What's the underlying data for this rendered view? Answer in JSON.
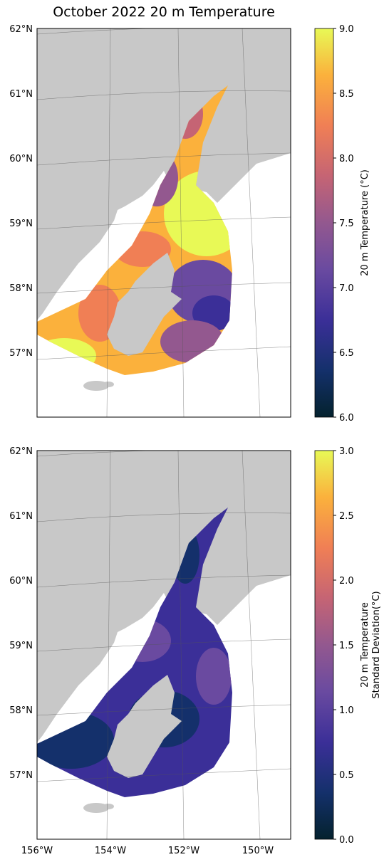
{
  "title": "October 2022 20 m Temperature",
  "lat_labels": [
    "62°N",
    "61°N",
    "60°N",
    "59°N",
    "58°N",
    "57°N"
  ],
  "lon_labels": [
    "156°W",
    "154°W",
    "152°W",
    "150°W"
  ],
  "colors": {
    "land": "#c8c8c8",
    "ocean": "#ffffff",
    "grid": "#555555"
  },
  "panels": [
    {
      "name": "mean-temperature",
      "colorbar": {
        "label": "20 m Temperature (°C)",
        "ticks": [
          "9.0",
          "8.5",
          "8.0",
          "7.5",
          "7.0",
          "6.5",
          "6.0"
        ],
        "min": 6.0,
        "max": 9.0,
        "colormap": "thermal"
      }
    },
    {
      "name": "temperature-std",
      "colorbar": {
        "label_line1": "20 m Temperature",
        "label_line2": "Standard Deviation(°C)",
        "ticks": [
          "3.0",
          "2.5",
          "2.0",
          "1.5",
          "1.0",
          "0.5",
          "0.0"
        ],
        "min": 0.0,
        "max": 3.0,
        "colormap": "thermal"
      }
    }
  ]
}
